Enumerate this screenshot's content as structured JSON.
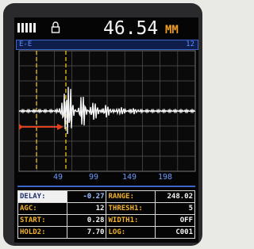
{
  "header": {
    "reading": "46.54",
    "unit": "MM"
  },
  "status": {
    "mode": "E-E",
    "gain": "12"
  },
  "axis": {
    "labels": [
      "49",
      "99",
      "149",
      "198"
    ]
  },
  "params": {
    "rows": [
      [
        [
          "DELAY:",
          "-0.27"
        ],
        [
          "RANGE:",
          "248.02"
        ]
      ],
      [
        [
          "AGC:",
          "12"
        ],
        [
          "THRESH1:",
          "5"
        ]
      ],
      [
        [
          "START:",
          "0.28"
        ],
        [
          "WIDTH1:",
          "OFF"
        ]
      ],
      [
        [
          "HOLD2:",
          "7.70"
        ],
        [
          "LOG:",
          "C001"
        ]
      ]
    ]
  }
}
